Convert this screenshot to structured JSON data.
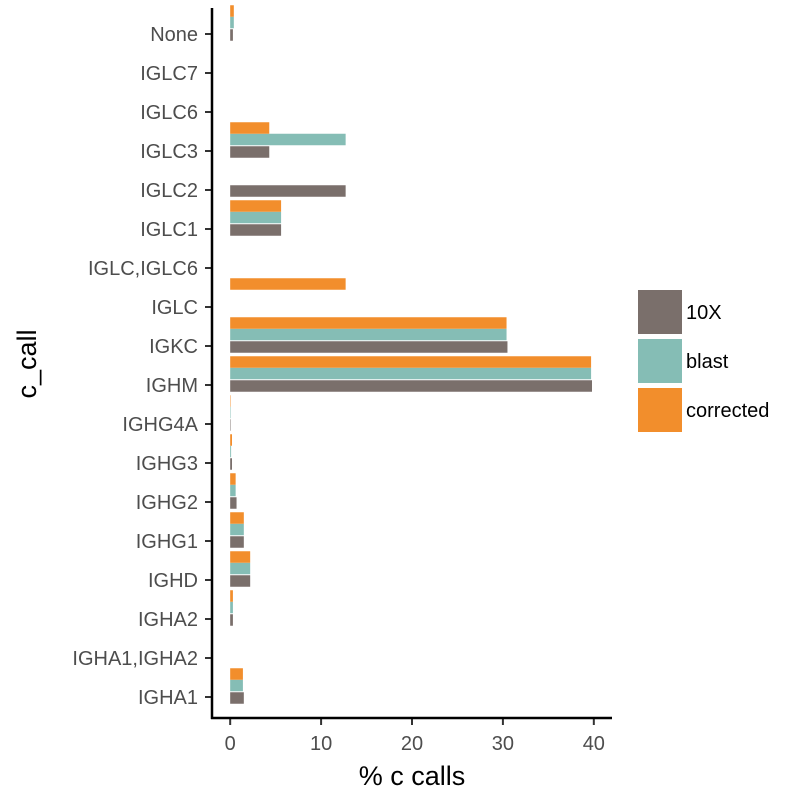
{
  "chart_data": {
    "type": "bar",
    "orientation": "horizontal",
    "xlabel": "% c calls",
    "ylabel": "c_call",
    "xlim": [
      -2,
      42
    ],
    "xticks": [
      0,
      10,
      20,
      30,
      40
    ],
    "grid": false,
    "legend_position": "right",
    "categories": [
      "IGHA1",
      "IGHA1,IGHA2",
      "IGHA2",
      "IGHD",
      "IGHG1",
      "IGHG2",
      "IGHG3",
      "IGHG4A",
      "IGHM",
      "IGKC",
      "IGLC",
      "IGLC,IGLC6",
      "IGLC1",
      "IGLC2",
      "IGLC3",
      "IGLC6",
      "IGLC7",
      "None"
    ],
    "series": [
      {
        "name": "10X",
        "color": "#7a6f6b",
        "values": [
          1.5,
          0,
          0.3,
          2.2,
          1.5,
          0.7,
          0.2,
          0.05,
          39.8,
          30.5,
          0,
          0,
          5.6,
          12.7,
          4.3,
          0,
          0,
          0.3
        ]
      },
      {
        "name": "blast",
        "color": "#85bdb5",
        "values": [
          1.4,
          0,
          0.3,
          2.2,
          1.5,
          0.6,
          0.1,
          0.05,
          39.7,
          30.4,
          0,
          0,
          5.6,
          0,
          12.7,
          0,
          0,
          0.4
        ]
      },
      {
        "name": "corrected",
        "color": "#f28e2c",
        "values": [
          1.4,
          0,
          0.3,
          2.2,
          1.5,
          0.6,
          0.2,
          0.05,
          39.7,
          30.4,
          12.7,
          0,
          5.6,
          0,
          4.3,
          0,
          0,
          0.4
        ]
      }
    ]
  }
}
